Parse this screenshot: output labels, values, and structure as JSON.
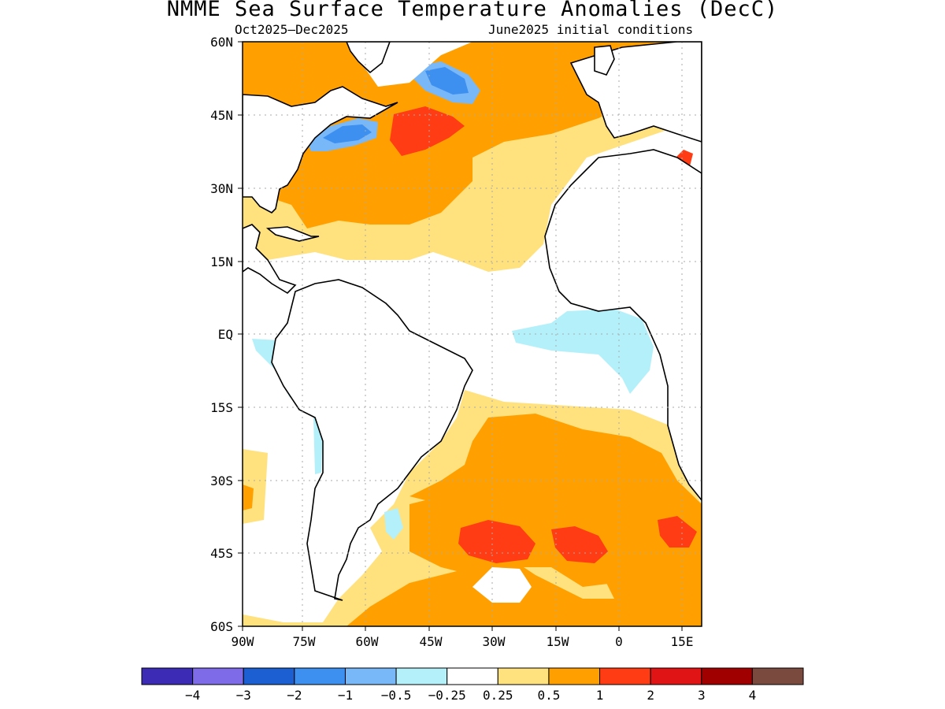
{
  "title": "NMME Sea Surface Temperature Anomalies (DecC)",
  "subtitle_left": "Oct2025–Dec2025",
  "subtitle_right": "June2025 initial conditions",
  "map": {
    "lon_range": [
      -90,
      19
    ],
    "lat_range": [
      -60,
      60
    ],
    "lat_ticks": [
      "60N",
      "45N",
      "30N",
      "15N",
      "EQ",
      "15S",
      "30S",
      "45S",
      "60S"
    ],
    "lon_ticks": [
      "90W",
      "75W",
      "60W",
      "45W",
      "30W",
      "15W",
      "0",
      "15E"
    ],
    "grid": "dotted"
  },
  "colorbar": {
    "colors": [
      "#3c2bb4",
      "#7d6be8",
      "#1c5fd2",
      "#3d8ff0",
      "#78b8f8",
      "#b4f0fa",
      "#ffffff",
      "#ffe17e",
      "#ffa000",
      "#ff3c14",
      "#e01414",
      "#a00000",
      "#7a4a3e"
    ],
    "labels": [
      "−4",
      "−3",
      "−2",
      "−1",
      "−0.5",
      "−0.25",
      "0.25",
      "0.5",
      "1",
      "2",
      "3",
      "4"
    ]
  }
}
